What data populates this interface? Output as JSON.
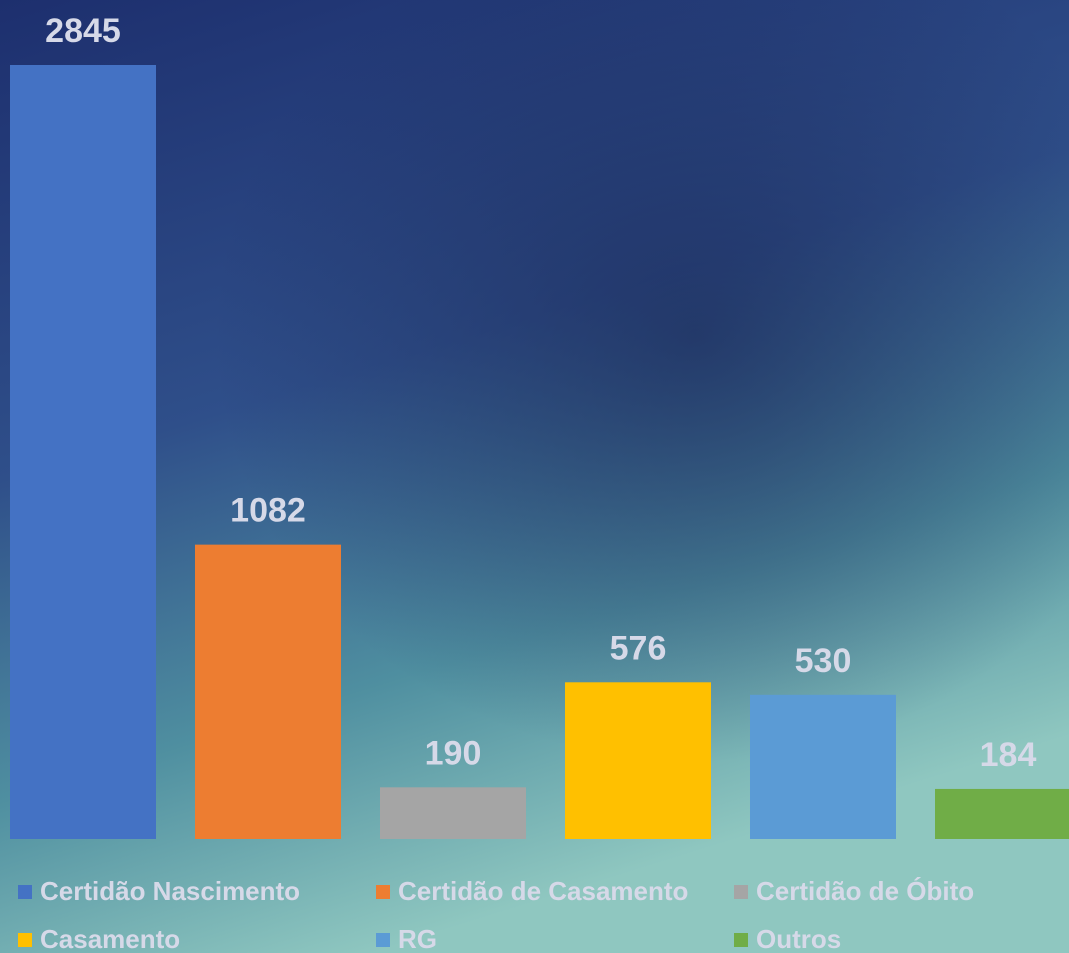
{
  "chart_data": {
    "type": "bar",
    "series": [
      {
        "name": "Certidão Nascimento",
        "color": "#4472c4",
        "values": [
          2845
        ]
      },
      {
        "name": "Certidão de Casamento",
        "color": "#ed7d31",
        "values": [
          1082
        ]
      },
      {
        "name": "Certidão de Óbito",
        "color": "#a5a5a5",
        "values": [
          190
        ]
      },
      {
        "name": "Casamento",
        "color": "#ffc000",
        "values": [
          576
        ]
      },
      {
        "name": "RG",
        "color": "#5b9bd5",
        "values": [
          530
        ]
      },
      {
        "name": "Outros",
        "color": "#70ad47",
        "values": [
          184
        ]
      }
    ]
  }
}
